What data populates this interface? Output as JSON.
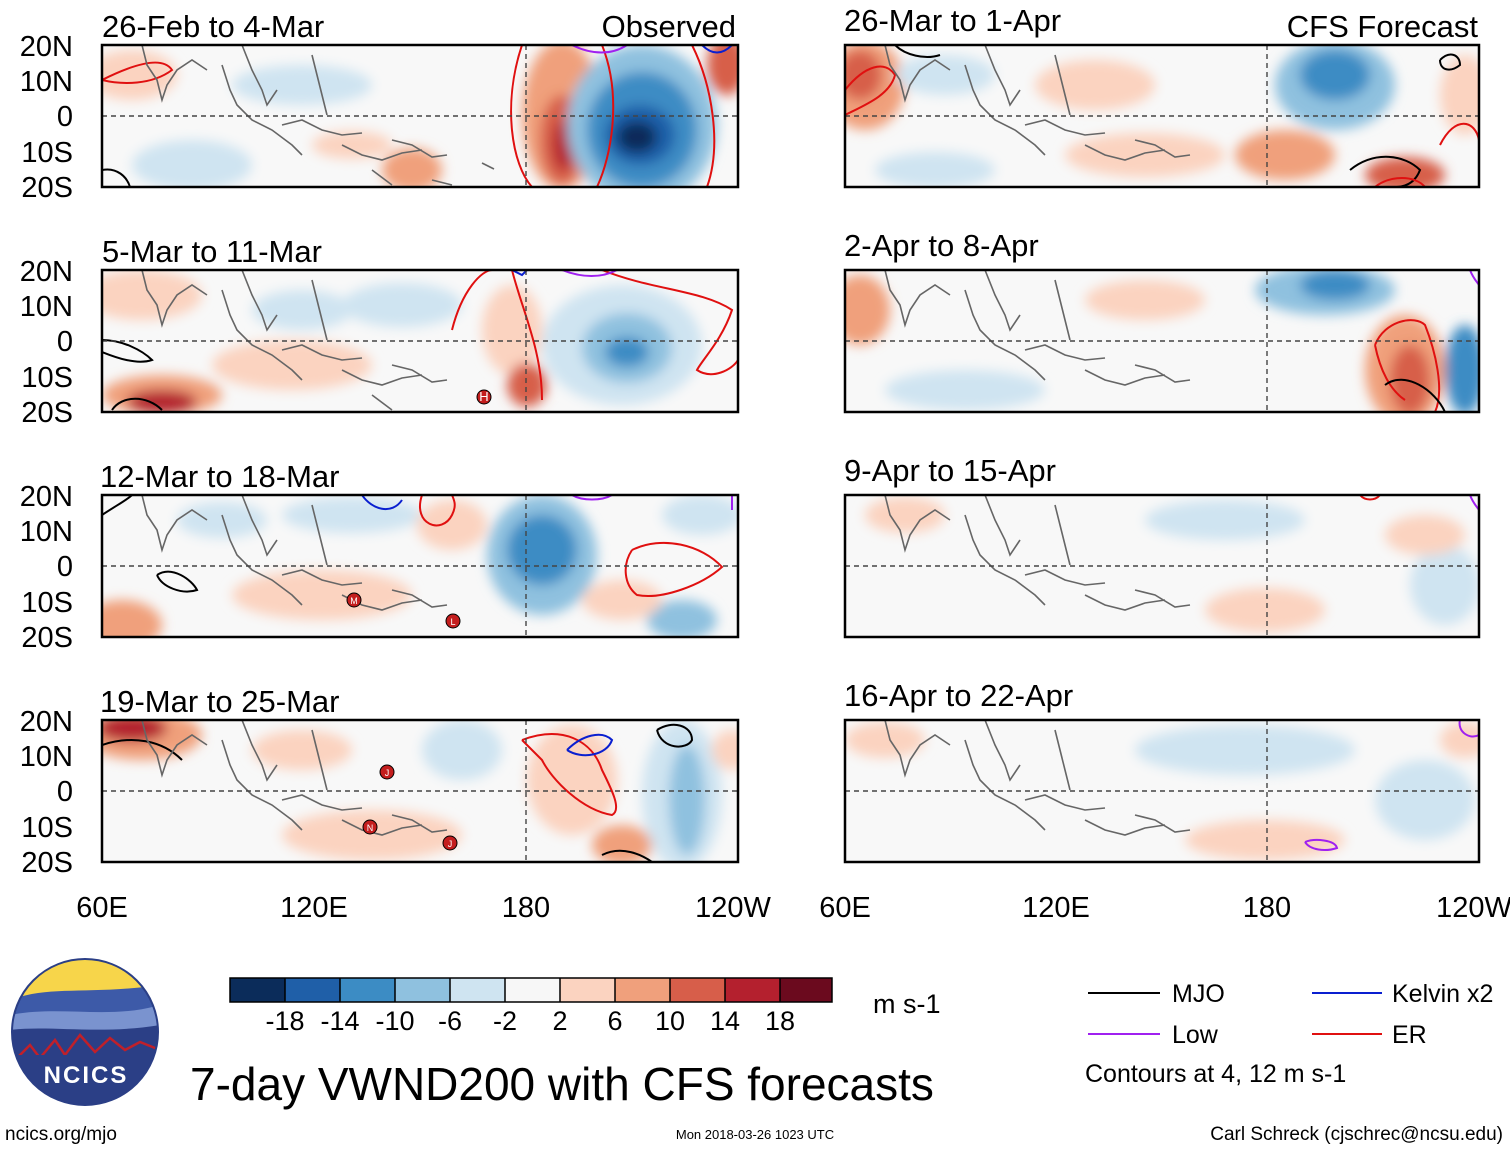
{
  "figure_title": "7-day VWND200 with CFS forecasts",
  "org_logo_text": "NCICS",
  "website": "ncics.org/mjo",
  "timestamp": "Mon 2018-03-26 1023 UTC",
  "author": "Carl Schreck (cjschrec@ncsu.edu)",
  "column_labels": {
    "observed": "Observed",
    "forecast": "CFS Forecast"
  },
  "lat_ticks": [
    "20N",
    "10N",
    "0",
    "10S",
    "20S"
  ],
  "lon_ticks": [
    "60E",
    "120E",
    "180",
    "120W"
  ],
  "panels_observed": [
    {
      "period": "26-Feb to 4-Mar"
    },
    {
      "period": "5-Mar to 11-Mar"
    },
    {
      "period": "12-Mar to 18-Mar"
    },
    {
      "period": "19-Mar to 25-Mar"
    }
  ],
  "panels_forecast": [
    {
      "period": "26-Mar to 1-Apr"
    },
    {
      "period": "2-Apr to 8-Apr"
    },
    {
      "period": "9-Apr to 15-Apr"
    },
    {
      "period": "16-Apr to 22-Apr"
    }
  ],
  "colorbar": {
    "unit": "m s-1",
    "labels": [
      "-18",
      "-14",
      "-10",
      "-6",
      "-2",
      "2",
      "6",
      "10",
      "14",
      "18"
    ],
    "colors": [
      "#0b2c5a",
      "#1f5fa8",
      "#3c8cc4",
      "#8fc1df",
      "#cfe4f1",
      "#f7f7f7",
      "#fbd3c0",
      "#f0a07c",
      "#d75e4a",
      "#b4202e",
      "#6b0a1e"
    ]
  },
  "legend": {
    "items": [
      {
        "label": "MJO",
        "color": "#000000"
      },
      {
        "label": "Kelvin x2",
        "color": "#0a1fd0"
      },
      {
        "label": "Low",
        "color": "#a020f0"
      },
      {
        "label": "ER",
        "color": "#e01010"
      }
    ],
    "note": "Contours at 4, 12 m s-1"
  },
  "storm_markers": [
    {
      "panel": 1,
      "letter": "H"
    },
    {
      "panel": 2,
      "letter": "M"
    },
    {
      "panel": 2,
      "letter": "L"
    },
    {
      "panel": 3,
      "letter": "J"
    },
    {
      "panel": 3,
      "letter": "N"
    },
    {
      "panel": 3,
      "letter": "J"
    }
  ]
}
